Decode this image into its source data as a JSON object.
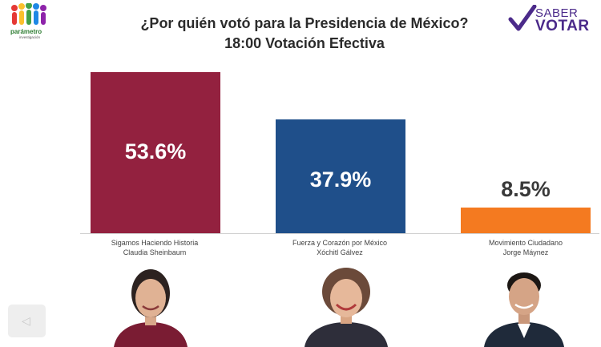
{
  "header": {
    "title": "¿Por quién votó para la Presidencia de México?",
    "subtitle": "18:00 Votación Efectiva"
  },
  "logos": {
    "left": {
      "name": "parámetro",
      "sub": "investigación"
    },
    "right": {
      "line1": "SABER",
      "line2": "VOTAR"
    }
  },
  "colors": {
    "morena": "#93213f",
    "fuerza": "#1f4f8a",
    "mc": "#f47a20",
    "value_text_light": "#ffffff",
    "value_text_dark": "#3a3a3a"
  },
  "chart_data": {
    "type": "bar",
    "title": "¿Por quién votó para la Presidencia de México?",
    "subtitle": "18:00 Votación Efectiva",
    "categories": [
      "Sigamos Haciendo Historia / Claudia Sheinbaum",
      "Fuerza y Corazón por México / Xóchitl Gálvez",
      "Movimiento Ciudadano / Jorge Máynez"
    ],
    "values": [
      53.6,
      37.9,
      8.5
    ],
    "value_labels": [
      "53.6%",
      "37.9%",
      "8.5%"
    ],
    "unit": "%",
    "ylim": [
      0,
      53.6
    ],
    "grid": false,
    "legend": "none"
  },
  "candidates": [
    {
      "coalition": "Sigamos Haciendo Historia",
      "name": "Claudia Sheinbaum",
      "color_key": "morena",
      "label_inside": true
    },
    {
      "coalition": "Fuerza y Corazón por México",
      "name": "Xóchitl Gálvez",
      "color_key": "fuerza",
      "label_inside": true
    },
    {
      "coalition": "Movimiento Ciudadano",
      "name": "Jorge Máynez",
      "color_key": "mc",
      "label_inside": false
    }
  ]
}
